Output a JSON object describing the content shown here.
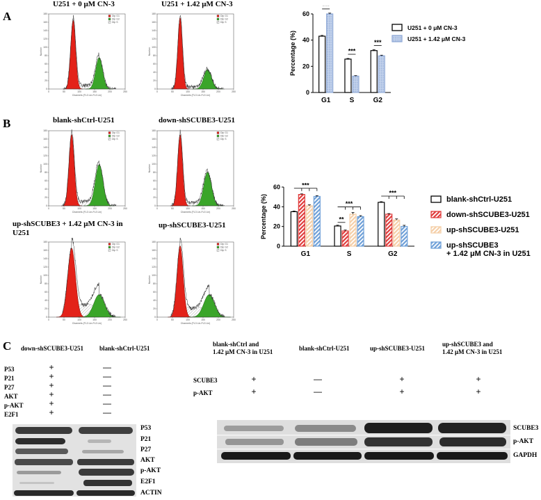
{
  "panels": {
    "A": {
      "letter": "A",
      "flow_titles": [
        "U251 + 0  μM CN-3",
        "U251 + 1.42  μM CN-3"
      ]
    },
    "B": {
      "letter": "B",
      "flow_titles": [
        "blank-shCtrl-U251",
        "down-shSCUBE3-U251",
        "up-shSCUBE3 + 1.42  μM CN-3 in U251",
        "up-shSCUBE3-U251"
      ]
    },
    "C": {
      "letter": "C"
    }
  },
  "flow_common": {
    "legend": [
      "Dip G1",
      "Dip G2",
      "Dip S"
    ],
    "xlabel": "Channels (FL3 Lin-FL3 Lin)",
    "ylabel": "Number",
    "xticks": [
      "0",
      "50",
      "100",
      "150",
      "200",
      "250"
    ],
    "yticks": [
      "0",
      "20",
      "40",
      "60",
      "80",
      "100",
      "120",
      "140",
      "160",
      "180"
    ],
    "g1_color": "#e32219",
    "g2_color": "#3aa529"
  },
  "chart_data": [
    {
      "type": "bar",
      "categories": [
        "G1",
        "S",
        "G2"
      ],
      "ylabel": "Percentage  (%)",
      "ylim": [
        0,
        60
      ],
      "yticks": [
        "0",
        "20",
        "40",
        "60"
      ],
      "legend_placement": "right",
      "series": [
        {
          "name": "U251 + 0 μM CN-3",
          "values": [
            43,
            25.5,
            32
          ],
          "errors": [
            0.6,
            0.5,
            0.6
          ],
          "color": "#000000",
          "pattern": "solid"
        },
        {
          "name": "U251 + 1.42 μM CN-3",
          "values": [
            60,
            12.5,
            28
          ],
          "errors": [
            0.6,
            0.4,
            0.5
          ],
          "color": "#8fa9d6",
          "pattern": "dots"
        }
      ],
      "significance": [
        {
          "category": "G1",
          "label": "***"
        },
        {
          "category": "S",
          "label": "***"
        },
        {
          "category": "G2",
          "label": "***"
        }
      ]
    },
    {
      "type": "bar",
      "categories": [
        "G1",
        "S",
        "G2"
      ],
      "ylabel": "Percentage  (%)",
      "ylim": [
        0,
        60
      ],
      "yticks": [
        "0",
        "20",
        "40",
        "60"
      ],
      "legend_placement": "right",
      "series": [
        {
          "name": "blank-shCtrl-U251",
          "values": [
            35,
            20.5,
            44.5
          ],
          "errors": [
            0.7,
            0.8,
            0.7
          ],
          "color": "#000000",
          "pattern": "solid"
        },
        {
          "name": "down-shSCUBE3-U251",
          "values": [
            52.5,
            15.5,
            32.5
          ],
          "errors": [
            0.6,
            0.9,
            0.6
          ],
          "color": "#e03c3c",
          "pattern": "stripes"
        },
        {
          "name": "up-shSCUBE3-U251",
          "values": [
            41,
            32.5,
            26.5
          ],
          "errors": [
            1.0,
            1.7,
            1.2
          ],
          "color": "#f5cfa8",
          "pattern": "stripes"
        },
        {
          "name": "up-shSCUBE3\n+ 1.42 μM CN-3 in U251",
          "values": [
            50.5,
            30,
            20
          ],
          "errors": [
            0.8,
            1.0,
            1.2
          ],
          "color": "#6fa0d8",
          "pattern": "stripes"
        }
      ],
      "significance": [
        {
          "category": "G1",
          "label": "***"
        },
        {
          "category": "S",
          "label": "**"
        },
        {
          "category": "S",
          "label": "***"
        },
        {
          "category": "G2",
          "label": "***"
        }
      ]
    }
  ],
  "western_left": {
    "headers": [
      "down-shSCUBE3-U251",
      "blank-shCtrl-U251"
    ],
    "rows": [
      {
        "label": "P53",
        "marks": [
          "+",
          "—"
        ]
      },
      {
        "label": "P21",
        "marks": [
          "+",
          "—"
        ]
      },
      {
        "label": "P27",
        "marks": [
          "+",
          "—"
        ]
      },
      {
        "label": "AKT",
        "marks": [
          "+",
          "—"
        ]
      },
      {
        "label": "p-AKT",
        "marks": [
          "+",
          "—"
        ]
      },
      {
        "label": "E2F1",
        "marks": [
          "+",
          "—"
        ]
      }
    ],
    "blot_labels": [
      "P53",
      "P21",
      "P27",
      "AKT",
      "p-AKT",
      "E2F1",
      "ACTIN"
    ]
  },
  "western_right": {
    "headers": [
      "blank-shCtrl and\n1.42 μM CN-3 in U251",
      "blank-shCtrl-U251",
      "up-shSCUBE3-U251",
      "up-shSCUBE3 and\n1.42 μM CN-3 in U251"
    ],
    "rows": [
      {
        "label": "SCUBE3",
        "marks": [
          "+",
          "—",
          "+",
          "+"
        ]
      },
      {
        "label": "p-AKT",
        "marks": [
          "+",
          "—",
          "+",
          "+"
        ]
      }
    ],
    "blot_labels": [
      "SCUBE3",
      "p-AKT",
      "GAPDH"
    ]
  }
}
